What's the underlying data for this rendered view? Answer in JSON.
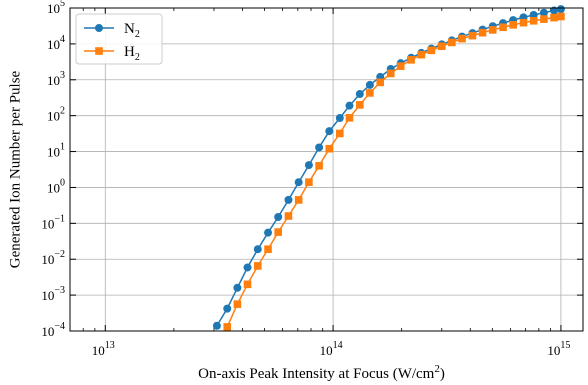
{
  "chart_data": {
    "type": "scatter",
    "xscale": "log",
    "yscale": "log",
    "xlim": [
      7000000000000.0,
      1250000000000000.0
    ],
    "ylim": [
      0.0001,
      100000.0
    ],
    "grid": true,
    "title": "",
    "xlabel": "On-axis Peak Intensity at Focus (W/cm²)",
    "ylabel": "Generated Ion Number per Pulse",
    "legend_position": "top-left",
    "x_ticks": [
      {
        "value": 10000000000000.0,
        "base": "10",
        "exp": "13"
      },
      {
        "value": 100000000000000.0,
        "base": "10",
        "exp": "14"
      },
      {
        "value": 1000000000000000.0,
        "base": "10",
        "exp": "15"
      }
    ],
    "y_ticks": [
      {
        "value": 100000.0,
        "base": "10",
        "exp": "5"
      },
      {
        "value": 10000.0,
        "base": "10",
        "exp": "4"
      },
      {
        "value": 1000.0,
        "base": "10",
        "exp": "3"
      },
      {
        "value": 100.0,
        "base": "10",
        "exp": "2"
      },
      {
        "value": 10.0,
        "base": "10",
        "exp": "1"
      },
      {
        "value": 1.0,
        "base": "10",
        "exp": "0"
      },
      {
        "value": 0.1,
        "base": "10",
        "exp": "−1"
      },
      {
        "value": 0.01,
        "base": "10",
        "exp": "−2"
      },
      {
        "value": 0.001,
        "base": "10",
        "exp": "−3"
      },
      {
        "value": 0.0001,
        "base": "10",
        "exp": "−4"
      }
    ],
    "series": [
      {
        "name": "N",
        "subscript": "2",
        "color": "#1f77b4",
        "marker": "circle",
        "x": [
          30900000000000.0,
          34300000000000.0,
          38000000000000.0,
          42100000000000.0,
          46700000000000.0,
          51800000000000.0,
          57400000000000.0,
          63700000000000.0,
          70600000000000.0,
          78300000000000.0,
          86800000000000.0,
          96200000000000.0,
          107000000000000.0,
          118000000000000.0,
          131000000000000.0,
          145000000000000.0,
          161000000000000.0,
          179000000000000.0,
          198000000000000.0,
          220000000000000.0,
          244000000000000.0,
          270000000000000.0,
          300000000000000.0,
          332000000000000.0,
          368000000000000.0,
          409000000000000.0,
          453000000000000.0,
          502000000000000.0,
          557000000000000.0,
          617000000000000.0,
          685000000000000.0,
          759000000000000.0,
          842000000000000.0,
          933000000000000.0,
          1000000000000000.0
        ],
        "y": [
          0.00014,
          0.00042,
          0.0016,
          0.0059,
          0.019,
          0.055,
          0.15,
          0.45,
          1.4,
          4.2,
          13.0,
          37.0,
          86.0,
          190.0,
          400.0,
          720.0,
          1200.0,
          2000.0,
          2900.0,
          4100.0,
          5600.0,
          7400.0,
          9700.0,
          12500.0,
          16000.0,
          20000.0,
          25000.0,
          31000.0,
          38000.0,
          46000.0,
          55000.0,
          64000.0,
          74000.0,
          85000.0,
          93000.0
        ]
      },
      {
        "name": "H",
        "subscript": "2",
        "color": "#ff7f0e",
        "marker": "square",
        "x": [
          34300000000000.0,
          38000000000000.0,
          42100000000000.0,
          46700000000000.0,
          51800000000000.0,
          57400000000000.0,
          63700000000000.0,
          70600000000000.0,
          78300000000000.0,
          86800000000000.0,
          96200000000000.0,
          107000000000000.0,
          118000000000000.0,
          131000000000000.0,
          145000000000000.0,
          161000000000000.0,
          179000000000000.0,
          198000000000000.0,
          220000000000000.0,
          244000000000000.0,
          270000000000000.0,
          300000000000000.0,
          332000000000000.0,
          368000000000000.0,
          409000000000000.0,
          453000000000000.0,
          502000000000000.0,
          557000000000000.0,
          617000000000000.0,
          685000000000000.0,
          759000000000000.0,
          842000000000000.0,
          933000000000000.0,
          1000000000000000.0
        ],
        "y": [
          0.00013,
          0.00056,
          0.002,
          0.0065,
          0.019,
          0.057,
          0.16,
          0.45,
          1.4,
          4.0,
          12.0,
          32.0,
          87.0,
          200.0,
          430.0,
          850.0,
          1500.0,
          2400.0,
          3600.0,
          5000.0,
          6600.0,
          8600.0,
          11000.0,
          14000.0,
          17000.0,
          20500.0,
          24500.0,
          29000.0,
          34000.0,
          39000.0,
          44000.0,
          49000.0,
          54000.0,
          58000.0
        ]
      }
    ]
  }
}
